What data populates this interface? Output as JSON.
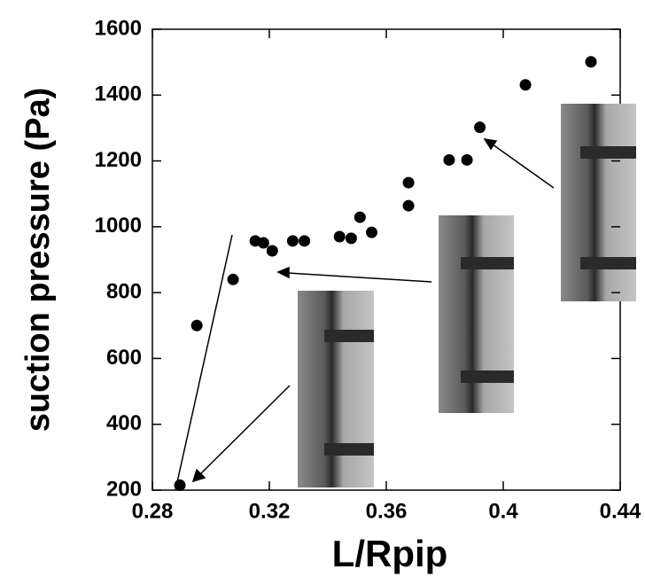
{
  "chart_data": {
    "type": "scatter",
    "y_label": "suction pressure (Pa)",
    "x_label": "L/Rpip",
    "color": "#000000",
    "x": [
      0.2894,
      0.2952,
      0.3076,
      0.3152,
      0.318,
      0.321,
      0.328,
      0.332,
      0.344,
      0.348,
      0.351,
      0.355,
      0.3676,
      0.3676,
      0.3815,
      0.3876,
      0.392,
      0.4076,
      0.43
    ],
    "values": [
      215,
      700,
      840,
      957,
      951,
      927,
      957,
      957,
      970,
      965,
      1029,
      983,
      1064,
      1134,
      1203,
      1203,
      1302,
      1431,
      1501
    ],
    "xlim": [
      0.28,
      0.44
    ],
    "ylim": [
      200,
      1600
    ],
    "xticks": [
      0.28,
      0.32,
      0.36,
      {
        "value": 0.4,
        "label": "0.4"
      },
      0.44
    ],
    "yticks": [
      200,
      400,
      600,
      800,
      1000,
      1200,
      1400,
      1600
    ]
  }
}
